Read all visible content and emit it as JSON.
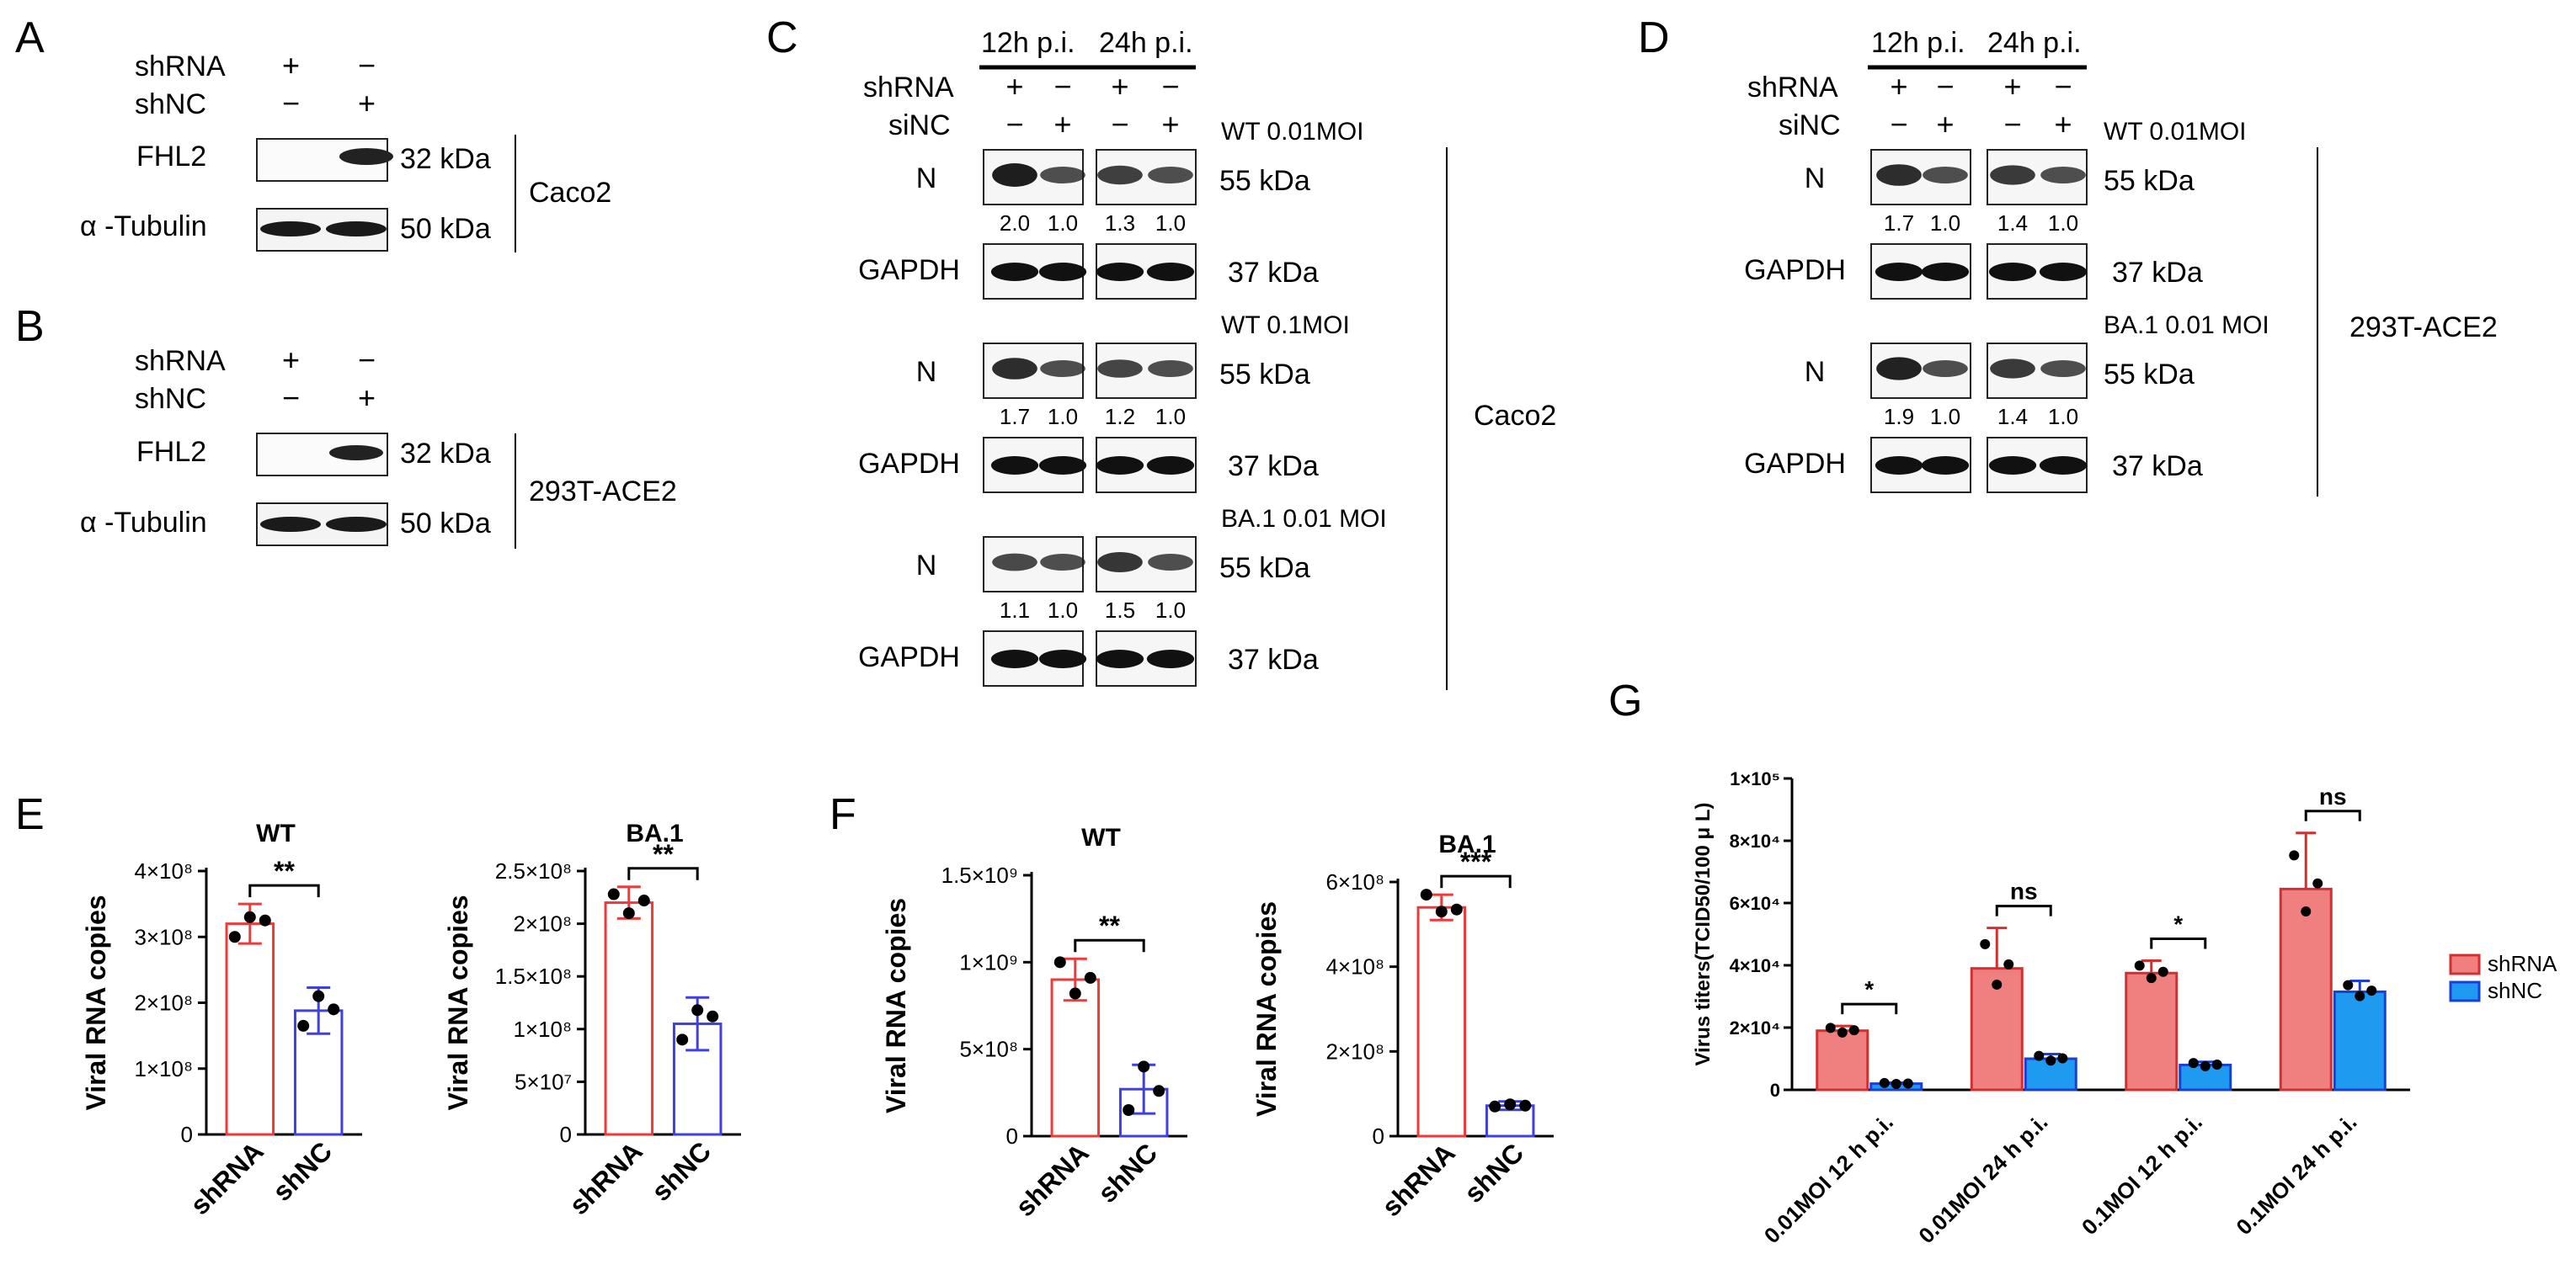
{
  "panel_letters": [
    "A",
    "B",
    "C",
    "D",
    "E",
    "F",
    "G"
  ],
  "panelA": {
    "row1": "shRNA",
    "row2": "shNC",
    "plus": "+",
    "minus": "−",
    "band1": "FHL2",
    "band2": "α -Tubulin",
    "kda1": "32 kDa",
    "kda2": "50 kDa",
    "cell": "Caco2"
  },
  "panelB": {
    "row1": "shRNA",
    "row2": "shNC",
    "plus": "+",
    "minus": "−",
    "band1": "FHL2",
    "band2": "α -Tubulin",
    "kda1": "32 kDa",
    "kda2": "50 kDa",
    "cell": "293T-ACE2"
  },
  "panelC": {
    "tp1": "12h p.i.",
    "tp2": "24h p.i.",
    "row1": "shRNA",
    "row2": "siNC",
    "plus": "+",
    "minus": "−",
    "cell": "Caco2",
    "kdaN": "55 kDa",
    "kdaG": "37 kDa",
    "N": "N",
    "GAPDH": "GAPDH",
    "blocks": [
      {
        "cond": "WT 0.01MOI",
        "q": [
          "2.0",
          "1.0",
          "1.3",
          "1.0"
        ]
      },
      {
        "cond": "WT 0.1MOI",
        "q": [
          "1.7",
          "1.0",
          "1.2",
          "1.0"
        ]
      },
      {
        "cond": "BA.1 0.01 MOI",
        "q": [
          "1.1",
          "1.0",
          "1.5",
          "1.0"
        ]
      }
    ]
  },
  "panelD": {
    "tp1": "12h p.i.",
    "tp2": "24h p.i.",
    "row1": "shRNA",
    "row2": "siNC",
    "plus": "+",
    "minus": "−",
    "cell": "293T-ACE2",
    "kdaN": "55 kDa",
    "kdaG": "37 kDa",
    "N": "N",
    "GAPDH": "GAPDH",
    "blocks": [
      {
        "cond": "WT 0.01MOI",
        "q": [
          "1.7",
          "1.0",
          "1.4",
          "1.0"
        ]
      },
      {
        "cond": "BA.1 0.01 MOI",
        "q": [
          "1.9",
          "1.0",
          "1.4",
          "1.0"
        ]
      }
    ]
  },
  "colors": {
    "shRNA": "#ee3a3a",
    "shNC": "#3f3fe6",
    "shRNA_fill": "#f08080",
    "shNC_fill": "#1e9bf0"
  },
  "chart_data": [
    {
      "id": "E-WT",
      "type": "bar",
      "title": "WT",
      "ylabel": "Viral RNA copies",
      "categories": [
        "shRNA",
        "shNC"
      ],
      "values": [
        320000000,
        188000000
      ],
      "errors": [
        30000000,
        35000000
      ],
      "ylim": [
        0,
        400000000
      ],
      "yticks": [
        "0",
        "1×10⁸",
        "2×10⁸",
        "3×10⁸",
        "4×10⁸"
      ],
      "significance": "**",
      "points": [
        [
          300000000,
          330000000,
          325000000
        ],
        [
          165000000,
          210000000,
          190000000
        ]
      ]
    },
    {
      "id": "E-BA1",
      "type": "bar",
      "title": "BA.1",
      "ylabel": "Viral RNA copies",
      "categories": [
        "shRNA",
        "shNC"
      ],
      "values": [
        220000000,
        105000000
      ],
      "errors": [
        15000000,
        25000000
      ],
      "ylim": [
        0,
        250000000
      ],
      "yticks": [
        "0",
        "5×10⁷",
        "1×10⁸",
        "1.5×10⁸",
        "2×10⁸",
        "2.5×10⁸"
      ],
      "significance": "**",
      "points": [
        [
          228000000,
          210000000,
          222000000
        ],
        [
          90000000,
          118000000,
          112000000
        ]
      ]
    },
    {
      "id": "F-WT",
      "type": "bar",
      "title": "WT",
      "ylabel": "Viral RNA copies",
      "categories": [
        "shRNA",
        "shNC"
      ],
      "values": [
        900000000,
        270000000
      ],
      "errors": [
        120000000,
        140000000
      ],
      "ylim": [
        0,
        1500000000
      ],
      "yticks": [
        "0",
        "5×10⁸",
        "1×10⁹",
        "1.5×10⁹"
      ],
      "significance": "**",
      "points": [
        [
          1000000000,
          820000000,
          910000000
        ],
        [
          150000000,
          400000000,
          260000000
        ]
      ]
    },
    {
      "id": "F-BA1",
      "type": "bar",
      "title": "BA.1",
      "ylabel": "Viral RNA copies",
      "categories": [
        "shRNA",
        "shNC"
      ],
      "values": [
        540000000,
        72000000
      ],
      "errors": [
        30000000,
        10000000
      ],
      "ylim": [
        0,
        600000000
      ],
      "yticks": [
        "0",
        "2×10⁸",
        "4×10⁸",
        "6×10⁸"
      ],
      "significance": "***",
      "points": [
        [
          570000000,
          530000000,
          535000000
        ],
        [
          70000000,
          75000000,
          72000000
        ]
      ]
    },
    {
      "id": "G",
      "type": "bar",
      "title": "",
      "ylabel": "Virus titers(TCID50/100 μ L)",
      "categories": [
        "0.01MOI 12 h p.i.",
        "0.01MOI 24 h p.i.",
        "0.1MOI 12 h p.i.",
        "0.1MOI 24 h p.i."
      ],
      "series": [
        {
          "name": "shRNA",
          "values": [
            19000,
            39000,
            37500,
            64500
          ],
          "errors": [
            1500,
            13000,
            4000,
            18000
          ]
        },
        {
          "name": "shNC",
          "values": [
            2000,
            10000,
            8000,
            31500
          ],
          "errors": [
            300,
            1500,
            1000,
            3500
          ]
        }
      ],
      "ylim": [
        0,
        100000
      ],
      "yticks": [
        "0",
        "2×10⁴",
        "4×10⁴",
        "6×10⁴",
        "8×10⁴",
        "1×10⁵"
      ],
      "significance": [
        "*",
        "ns",
        "*",
        "ns"
      ],
      "legend": "right"
    }
  ]
}
